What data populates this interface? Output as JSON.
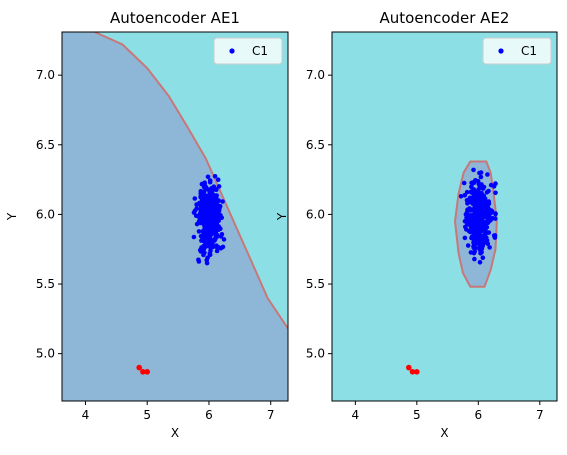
{
  "chart_data": [
    {
      "type": "scatter",
      "title": "Autoencoder AE1",
      "xlabel": "X",
      "ylabel": "Y",
      "xlim": [
        3.62,
        7.28
      ],
      "ylim": [
        4.66,
        7.31
      ],
      "xticks": [
        "4",
        "5",
        "6",
        "7"
      ],
      "yticks": [
        "5.0",
        "5.5",
        "6.0",
        "6.5",
        "7.0"
      ],
      "legend": {
        "position": "top-right",
        "entries": [
          "C1"
        ]
      },
      "background_color": "#8ddfe6",
      "region_color": "#8eb6d6",
      "boundary_color": "#c87878",
      "point_color": "#0000ff",
      "outlier_color": "#ff0000",
      "decision_region": {
        "shape": "curve",
        "boundary": [
          [
            3.62,
            7.31
          ],
          [
            4.15,
            7.31
          ],
          [
            4.6,
            7.22
          ],
          [
            5.0,
            7.05
          ],
          [
            5.35,
            6.85
          ],
          [
            5.65,
            6.63
          ],
          [
            5.95,
            6.4
          ],
          [
            6.2,
            6.15
          ],
          [
            6.45,
            5.9
          ],
          [
            6.7,
            5.65
          ],
          [
            6.95,
            5.4
          ],
          [
            7.1,
            5.3
          ],
          [
            7.28,
            5.18
          ],
          [
            7.28,
            4.66
          ],
          [
            3.62,
            4.66
          ]
        ]
      },
      "cluster": {
        "name": "C1",
        "x_range": [
          5.6,
          6.35
        ],
        "y_range": [
          5.65,
          6.32
        ],
        "center": [
          6.0,
          5.98
        ]
      },
      "outliers": [
        [
          4.87,
          4.9
        ],
        [
          4.93,
          4.87
        ],
        [
          5.0,
          4.87
        ]
      ]
    },
    {
      "type": "scatter",
      "title": "Autoencoder AE2",
      "xlabel": "X",
      "ylabel": "Y",
      "xlim": [
        3.62,
        7.28
      ],
      "ylim": [
        4.66,
        7.31
      ],
      "xticks": [
        "4",
        "5",
        "6",
        "7"
      ],
      "yticks": [
        "5.0",
        "5.5",
        "6.0",
        "6.5",
        "7.0"
      ],
      "legend": {
        "position": "top-right",
        "entries": [
          "C1"
        ]
      },
      "background_color": "#8ddfe6",
      "region_color": "#8eb6d6",
      "boundary_color": "#c87878",
      "point_color": "#0000ff",
      "outlier_color": "#ff0000",
      "decision_region": {
        "shape": "closed",
        "boundary": [
          [
            5.87,
            6.38
          ],
          [
            6.13,
            6.38
          ],
          [
            6.2,
            6.3
          ],
          [
            6.25,
            6.15
          ],
          [
            6.3,
            5.95
          ],
          [
            6.28,
            5.75
          ],
          [
            6.2,
            5.6
          ],
          [
            6.1,
            5.48
          ],
          [
            5.87,
            5.48
          ],
          [
            5.75,
            5.58
          ],
          [
            5.68,
            5.72
          ],
          [
            5.62,
            5.95
          ],
          [
            5.68,
            6.15
          ],
          [
            5.76,
            6.3
          ]
        ]
      },
      "cluster": {
        "name": "C1",
        "x_range": [
          5.72,
          6.28
        ],
        "y_range": [
          5.65,
          6.32
        ],
        "center": [
          6.0,
          5.98
        ]
      },
      "outliers": [
        [
          4.87,
          4.9
        ],
        [
          4.93,
          4.87
        ],
        [
          5.0,
          4.87
        ]
      ]
    }
  ]
}
